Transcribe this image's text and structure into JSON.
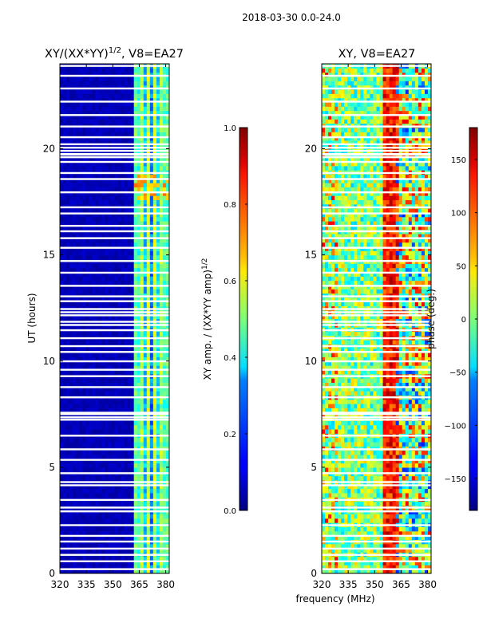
{
  "figure": {
    "suptitle": "2018-03-30 0.0-24.0",
    "xlabel": "frequency (MHz)"
  },
  "chart_data": [
    {
      "type": "heatmap",
      "title_main": "XY/(XX*YY)",
      "title_sup": "1/2",
      "title_rest": ", V8=EA27",
      "xlabel": "",
      "ylabel": "UT (hours)",
      "xlim": [
        320,
        382
      ],
      "ylim": [
        0,
        24
      ],
      "xticks": [
        "320",
        "335",
        "350",
        "365",
        "380"
      ],
      "yticks": [
        "0",
        "5",
        "10",
        "15",
        "20"
      ],
      "colormap": "jet",
      "colorbar": {
        "label_main": "XY amp. / (XX*YY amp)",
        "label_sup": "1/2",
        "range": [
          0.0,
          1.0
        ],
        "ticks": [
          "0.0",
          "0.2",
          "0.4",
          "0.6",
          "0.8",
          "1.0"
        ]
      }
    },
    {
      "type": "heatmap",
      "title_main": "XY, V8=EA27",
      "xlabel": "",
      "ylabel": "",
      "xlim": [
        320,
        382
      ],
      "ylim": [
        0,
        24
      ],
      "xticks": [
        "320",
        "335",
        "350",
        "365",
        "380"
      ],
      "yticks": [
        "0",
        "5",
        "10",
        "15",
        "20"
      ],
      "colormap": "jet",
      "colorbar": {
        "label_main": "phase (deg.)",
        "range": [
          -180,
          180
        ],
        "ticks": [
          "-150",
          "-100",
          "-50",
          "0",
          "50",
          "100",
          "150"
        ]
      }
    }
  ],
  "colors": {
    "jet_dark_blue": "#00007f",
    "jet_blue": "#0000ff",
    "jet_cyan": "#00ffff",
    "jet_green": "#7fff7f",
    "jet_yellow": "#ffff00",
    "jet_red": "#ff0000",
    "jet_dark_red": "#7f0000",
    "gap": "#ffffff"
  }
}
